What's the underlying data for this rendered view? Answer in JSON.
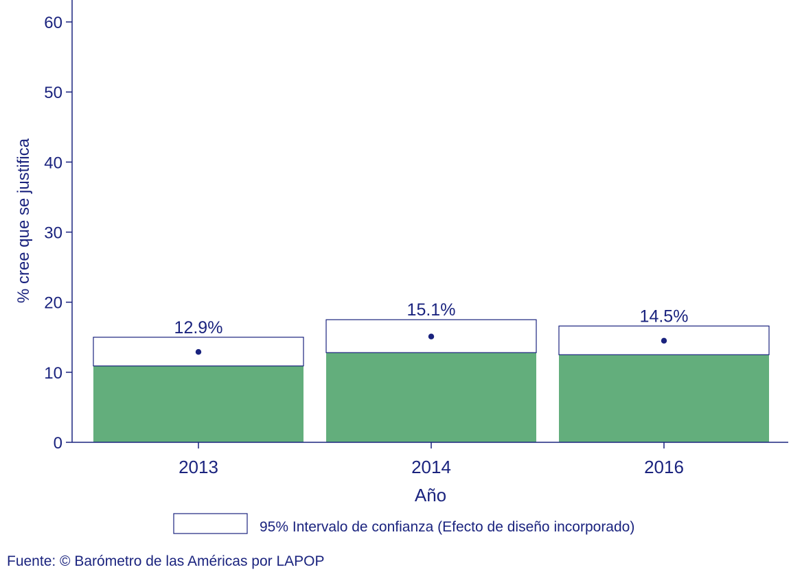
{
  "chart_data": {
    "type": "bar",
    "categories": [
      "2013",
      "2014",
      "2016"
    ],
    "values": [
      12.9,
      15.1,
      14.5
    ],
    "ci_low": [
      10.9,
      12.8,
      12.5
    ],
    "ci_high": [
      15.0,
      17.5,
      16.6
    ],
    "value_labels": [
      "12.9%",
      "15.1%",
      "14.5%"
    ],
    "ylabel": "% cree que se justifica",
    "xlabel": "Año",
    "ylim": [
      0,
      60
    ],
    "yticks": [
      "0",
      "10",
      "20",
      "30",
      "40",
      "50",
      "60"
    ],
    "grid": false,
    "legend": {
      "label": "95% Intervalo de confianza (Efecto de diseño incorporado)",
      "position": "bottom"
    },
    "source": "Fuente: © Barómetro de las Américas por LAPOP",
    "colors": {
      "bar": "#63ae7c",
      "accent": "#1a237e",
      "axis": "#1a237e"
    }
  }
}
